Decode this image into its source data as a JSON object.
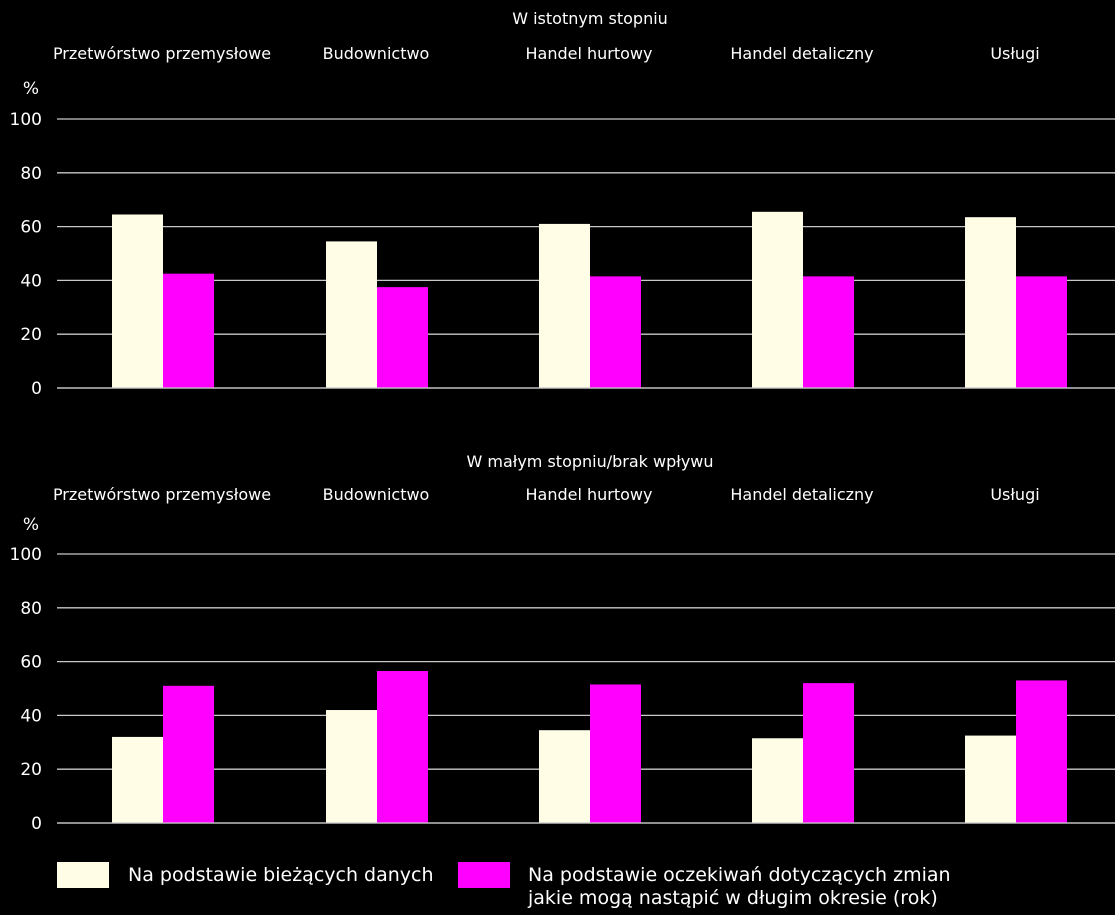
{
  "chart_data": [
    {
      "type": "bar",
      "title": "W istotnym stopniu",
      "y_unit_label": "%",
      "categories": [
        "Przetwórstwo przemysłowe",
        "Budownictwo",
        "Handel hurtowy",
        "Handel detaliczny",
        "Usługi"
      ],
      "series": [
        {
          "name": "Na podstawie bieżących danych",
          "values": [
            64.5,
            54.5,
            61,
            65.5,
            63.5
          ]
        },
        {
          "name": "Na podstawie oczekiwań dotyczących zmian jakie mogą nastąpić w długim okresie (rok)",
          "values": [
            42.5,
            37.5,
            41.5,
            41.5,
            41.5
          ]
        }
      ],
      "ylim": [
        0,
        100
      ],
      "yticks": [
        0,
        20,
        40,
        60,
        80,
        100
      ],
      "grid": true
    },
    {
      "type": "bar",
      "title": "W małym stopniu/brak wpływu",
      "y_unit_label": "%",
      "categories": [
        "Przetwórstwo przemysłowe",
        "Budownictwo",
        "Handel hurtowy",
        "Handel detaliczny",
        "Usługi"
      ],
      "series": [
        {
          "name": "Na podstawie bieżących danych",
          "values": [
            32,
            42,
            34.5,
            31.5,
            32.5
          ]
        },
        {
          "name": "Na podstawie oczekiwań dotyczących zmian jakie mogą nastąpić w długim okresie (rok)",
          "values": [
            51,
            56.5,
            51.5,
            52,
            53
          ]
        }
      ],
      "ylim": [
        0,
        100
      ],
      "yticks": [
        0,
        20,
        40,
        60,
        80,
        100
      ],
      "grid": true
    }
  ],
  "legend": {
    "items": [
      {
        "label_lines": [
          "Na podstawie bieżących danych"
        ],
        "color": "#FFFDE6"
      },
      {
        "label_lines": [
          "Na podstawie oczekiwań dotyczących zmian",
          "jakie mogą nastąpić w długim okresie (rok)"
        ],
        "color": "#FF00FF"
      }
    ]
  },
  "colors": {
    "background": "#000000",
    "series_current": "#FFFDE6",
    "series_expected": "#FF00FF",
    "gridline": "#c8c8c8",
    "text": "#ffffff"
  }
}
